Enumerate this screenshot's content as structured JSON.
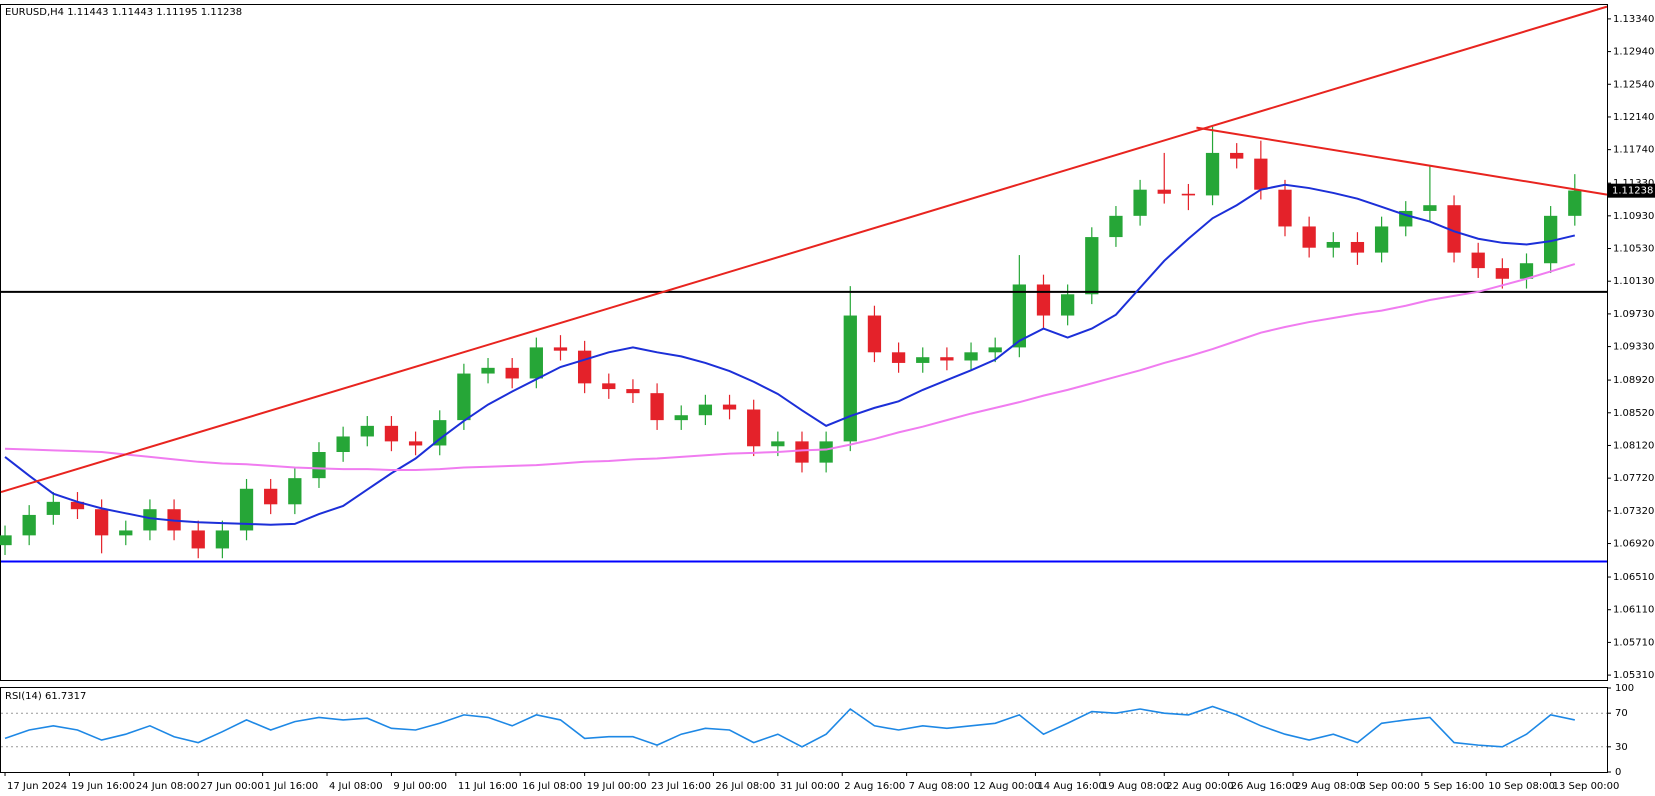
{
  "chart_data": [
    {
      "type": "candlestick",
      "title": "EURUSD,H4  1.11443 1.11443 1.11195 1.11238",
      "up_color": "#26a637",
      "down_color": "#e4222a",
      "x": [
        0,
        6,
        12,
        18,
        24,
        30,
        36,
        42,
        48,
        54,
        60,
        66,
        72,
        78,
        84,
        90,
        96,
        102,
        108,
        114,
        120,
        126,
        132,
        138,
        144,
        150,
        156,
        162,
        168,
        174,
        180,
        186,
        192,
        198,
        204,
        210,
        216,
        222,
        228,
        234,
        240,
        246,
        252,
        258,
        264,
        270,
        276,
        282,
        288,
        294,
        300,
        306,
        312,
        318,
        324,
        330,
        336,
        342,
        348,
        354,
        360,
        366,
        372,
        378,
        384,
        390
      ],
      "open": [
        1.069,
        1.0702,
        1.0727,
        1.0743,
        1.0734,
        1.0702,
        1.0708,
        1.0734,
        1.0708,
        1.0686,
        1.0708,
        1.0759,
        1.074,
        1.0772,
        1.0804,
        1.0823,
        1.0836,
        1.0817,
        1.0812,
        1.0843,
        1.09,
        1.0907,
        1.0894,
        1.0932,
        1.0928,
        1.0888,
        1.0881,
        1.0876,
        1.0843,
        1.0849,
        1.0862,
        1.0856,
        1.0811,
        1.0817,
        1.0791,
        1.0817,
        1.0971,
        1.0926,
        1.0913,
        1.092,
        1.0916,
        1.0926,
        1.0932,
        1.1009,
        1.0971,
        1.0997,
        1.1067,
        1.1093,
        1.1125,
        1.112,
        1.1118,
        1.117,
        1.1163,
        1.1125,
        1.108,
        1.1054,
        1.1061,
        1.1048,
        1.108,
        1.1099,
        1.1106,
        1.1048,
        1.1029,
        1.1016,
        1.1035,
        1.1093
      ],
      "high": [
        1.0714,
        1.0739,
        1.0755,
        1.0755,
        1.0746,
        1.072,
        1.0746,
        1.0746,
        1.072,
        1.072,
        1.0771,
        1.0771,
        1.0784,
        1.0816,
        1.0835,
        1.0848,
        1.0848,
        1.0829,
        1.0855,
        1.0912,
        1.0919,
        1.0919,
        1.0944,
        1.0947,
        1.094,
        1.09,
        1.0893,
        1.0888,
        1.0861,
        1.0874,
        1.0874,
        1.0868,
        1.0829,
        1.0829,
        1.0829,
        1.1007,
        1.0983,
        1.0938,
        1.0932,
        1.0932,
        1.0938,
        1.0944,
        1.1045,
        1.1021,
        1.1009,
        1.1079,
        1.1105,
        1.1137,
        1.117,
        1.1132,
        1.1202,
        1.1182,
        1.1185,
        1.1137,
        1.1092,
        1.1073,
        1.1073,
        1.1092,
        1.1111,
        1.1155,
        1.1118,
        1.106,
        1.1041,
        1.1047,
        1.1105,
        1.1144
      ],
      "low": [
        1.0678,
        1.069,
        1.0715,
        1.0722,
        1.068,
        1.069,
        1.0696,
        1.0696,
        1.0674,
        1.0674,
        1.0696,
        1.0728,
        1.0728,
        1.076,
        1.0792,
        1.0811,
        1.0805,
        1.08,
        1.08,
        1.0831,
        1.0888,
        1.0882,
        1.0882,
        1.0916,
        1.0876,
        1.0869,
        1.0864,
        1.0831,
        1.0831,
        1.0837,
        1.0844,
        1.0799,
        1.0799,
        1.0779,
        1.0779,
        1.0805,
        1.0914,
        1.0901,
        1.0901,
        1.0904,
        1.0904,
        1.0914,
        1.092,
        1.0954,
        1.0959,
        1.0985,
        1.1055,
        1.1081,
        1.1108,
        1.11,
        1.1106,
        1.1151,
        1.1113,
        1.1068,
        1.1042,
        1.1042,
        1.1033,
        1.1036,
        1.1068,
        1.1087,
        1.1036,
        1.1017,
        1.1004,
        1.1004,
        1.1023,
        1.1081
      ],
      "close": [
        1.0702,
        1.0727,
        1.0743,
        1.0734,
        1.0702,
        1.0708,
        1.0734,
        1.0708,
        1.0686,
        1.0708,
        1.0759,
        1.074,
        1.0772,
        1.0804,
        1.0823,
        1.0836,
        1.0817,
        1.0812,
        1.0843,
        1.09,
        1.0907,
        1.0894,
        1.0932,
        1.0928,
        1.0888,
        1.0881,
        1.0876,
        1.0843,
        1.0849,
        1.0862,
        1.0856,
        1.0811,
        1.0817,
        1.0791,
        1.0817,
        1.0971,
        1.0926,
        1.0913,
        1.092,
        1.0916,
        1.0926,
        1.0932,
        1.1009,
        1.0971,
        1.0997,
        1.1067,
        1.1093,
        1.1125,
        1.112,
        1.1118,
        1.117,
        1.1163,
        1.1125,
        1.108,
        1.1054,
        1.1061,
        1.1048,
        1.108,
        1.1099,
        1.1106,
        1.1048,
        1.1029,
        1.1016,
        1.1035,
        1.1093,
        1.1124
      ],
      "series": [
        {
          "color": "#1c2fd8",
          "values": [
            1.0798,
            1.0775,
            1.0753,
            1.0743,
            1.0735,
            1.0729,
            1.0723,
            1.072,
            1.0718,
            1.0717,
            1.0716,
            1.0715,
            1.0716,
            1.0728,
            1.0738,
            1.0758,
            1.0778,
            1.0796,
            1.082,
            1.0842,
            1.0862,
            1.0878,
            1.0893,
            1.0908,
            1.0917,
            1.0926,
            1.0932,
            1.0926,
            1.0921,
            1.0913,
            1.0903,
            1.089,
            1.0875,
            1.0855,
            1.0836,
            1.0848,
            1.0858,
            1.0866,
            1.088,
            1.0892,
            1.0904,
            1.0917,
            1.094,
            1.0955,
            1.0944,
            1.0955,
            1.0972,
            1.1005,
            1.1038,
            1.1065,
            1.109,
            1.1106,
            1.1125,
            1.1131,
            1.1127,
            1.1121,
            1.1114,
            1.1104,
            1.1094,
            1.1086,
            1.1074,
            1.1065,
            1.106,
            1.1058,
            1.1062,
            1.1069
          ]
        },
        {
          "color": "#f07cf0",
          "values": [
            1.0808,
            1.0807,
            1.0806,
            1.0805,
            1.0804,
            1.0801,
            1.0798,
            1.0795,
            1.0792,
            1.079,
            1.0789,
            1.0787,
            1.0785,
            1.0784,
            1.0783,
            1.0783,
            1.0782,
            1.0782,
            1.0783,
            1.0785,
            1.0786,
            1.0787,
            1.0788,
            1.079,
            1.0792,
            1.0793,
            1.0795,
            1.0796,
            1.0798,
            1.08,
            1.0802,
            1.0803,
            1.0804,
            1.0806,
            1.0807,
            1.0813,
            1.082,
            1.0828,
            1.0835,
            1.0843,
            1.0851,
            1.0858,
            1.0865,
            1.0873,
            1.088,
            1.0888,
            1.0896,
            1.0904,
            1.0913,
            1.0921,
            1.093,
            1.094,
            1.095,
            1.0957,
            1.0963,
            1.0968,
            1.0973,
            1.0977,
            1.0983,
            1.099,
            1.0995,
            1.1,
            1.1008,
            1.1016,
            1.1025,
            1.1034
          ]
        }
      ],
      "hlines": [
        {
          "value": 1.1,
          "color": "#000000"
        },
        {
          "value": 1.067,
          "color": "#0000ff"
        }
      ],
      "trendlines": [
        {
          "color": "#e8241f",
          "x": [
            -1,
            398
          ],
          "y": [
            1.0755,
            1.1349
          ]
        },
        {
          "color": "#e8241f",
          "x": [
            296,
            398
          ],
          "y": [
            1.1201,
            1.1119
          ]
        }
      ],
      "last_price": 1.11238,
      "xlim": [
        -1,
        398
      ],
      "ylim": [
        1.0525,
        1.1351
      ],
      "yticks": [
        {
          "value": 1.1334,
          "label": "1.13340"
        },
        {
          "value": 1.1294,
          "label": "1.12940"
        },
        {
          "value": 1.1254,
          "label": "1.12540"
        },
        {
          "value": 1.1214,
          "label": "1.12140"
        },
        {
          "value": 1.1174,
          "label": "1.11740"
        },
        {
          "value": 1.1133,
          "label": "1.11330"
        },
        {
          "value": 1.1093,
          "label": "1.10930"
        },
        {
          "value": 1.1053,
          "label": "1.10530"
        },
        {
          "value": 1.1013,
          "label": "1.10130"
        },
        {
          "value": 1.0973,
          "label": "1.09730"
        },
        {
          "value": 1.0933,
          "label": "1.09330"
        },
        {
          "value": 1.0892,
          "label": "1.08920"
        },
        {
          "value": 1.0852,
          "label": "1.08520"
        },
        {
          "value": 1.0812,
          "label": "1.08120"
        },
        {
          "value": 1.0772,
          "label": "1.07720"
        },
        {
          "value": 1.0732,
          "label": "1.07320"
        },
        {
          "value": 1.0692,
          "label": "1.06920"
        },
        {
          "value": 1.0651,
          "label": "1.06510"
        },
        {
          "value": 1.0611,
          "label": "1.06110"
        },
        {
          "value": 1.0571,
          "label": "1.05710"
        },
        {
          "value": 1.0531,
          "label": "1.05310"
        }
      ]
    },
    {
      "type": "line",
      "title": "RSI(14) 61.7317",
      "color": "#1e88e5",
      "x": [
        0,
        6,
        12,
        18,
        24,
        30,
        36,
        42,
        48,
        54,
        60,
        66,
        72,
        78,
        84,
        90,
        96,
        102,
        108,
        114,
        120,
        126,
        132,
        138,
        144,
        150,
        156,
        162,
        168,
        174,
        180,
        186,
        192,
        198,
        204,
        210,
        216,
        222,
        228,
        234,
        240,
        246,
        252,
        258,
        264,
        270,
        276,
        282,
        288,
        294,
        300,
        306,
        312,
        318,
        324,
        330,
        336,
        342,
        348,
        354,
        360,
        366,
        372,
        378,
        384,
        390
      ],
      "values": [
        40,
        50,
        55,
        50,
        38,
        45,
        55,
        42,
        35,
        48,
        62,
        50,
        60,
        65,
        62,
        64,
        52,
        50,
        58,
        68,
        65,
        55,
        68,
        62,
        40,
        42,
        42,
        32,
        45,
        52,
        50,
        35,
        45,
        30,
        45,
        75,
        55,
        50,
        55,
        52,
        55,
        58,
        68,
        45,
        58,
        72,
        70,
        75,
        70,
        68,
        78,
        68,
        55,
        45,
        38,
        45,
        35,
        58,
        62,
        65,
        35,
        32,
        30,
        45,
        68,
        62
      ],
      "xlim": [
        -1,
        398
      ],
      "ylim": [
        0,
        100
      ],
      "yticks": [
        0,
        30,
        70,
        100
      ],
      "xticks": [
        {
          "value": 0,
          "label": "17 Jun 2024"
        },
        {
          "value": 16,
          "label": "19 Jun 16:00"
        },
        {
          "value": 32,
          "label": "24 Jun 08:00"
        },
        {
          "value": 48,
          "label": "27 Jun 00:00"
        },
        {
          "value": 64,
          "label": "1 Jul 16:00"
        },
        {
          "value": 80,
          "label": "4 Jul 08:00"
        },
        {
          "value": 96,
          "label": "9 Jul 00:00"
        },
        {
          "value": 112,
          "label": "11 Jul 16:00"
        },
        {
          "value": 128,
          "label": "16 Jul 08:00"
        },
        {
          "value": 144,
          "label": "19 Jul 00:00"
        },
        {
          "value": 160,
          "label": "23 Jul 16:00"
        },
        {
          "value": 176,
          "label": "26 Jul 08:00"
        },
        {
          "value": 192,
          "label": "31 Jul 00:00"
        },
        {
          "value": 208,
          "label": "2 Aug 16:00"
        },
        {
          "value": 224,
          "label": "7 Aug 08:00"
        },
        {
          "value": 240,
          "label": "12 Aug 00:00"
        },
        {
          "value": 256,
          "label": "14 Aug 16:00"
        },
        {
          "value": 272,
          "label": "19 Aug 08:00"
        },
        {
          "value": 288,
          "label": "22 Aug 00:00"
        },
        {
          "value": 304,
          "label": "26 Aug 16:00"
        },
        {
          "value": 320,
          "label": "29 Aug 08:00"
        },
        {
          "value": 336,
          "label": "3 Sep 00:00"
        },
        {
          "value": 352,
          "label": "5 Sep 16:00"
        },
        {
          "value": 368,
          "label": "10 Sep 08:00"
        },
        {
          "value": 384,
          "label": "13 Sep 00:00"
        }
      ]
    }
  ]
}
